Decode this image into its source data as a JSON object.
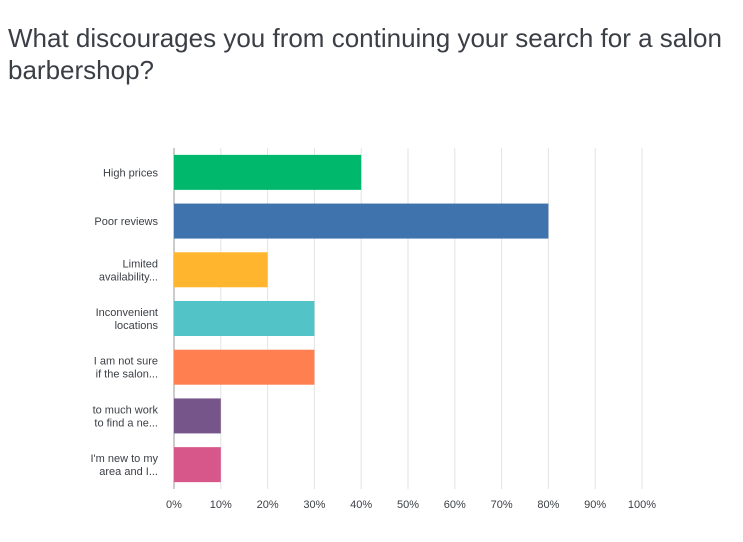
{
  "chart_data": {
    "type": "bar",
    "orientation": "horizontal",
    "title": "What discourages you from continuing your search for a salon barbershop?",
    "categories": [
      [
        "High prices"
      ],
      [
        "Poor reviews"
      ],
      [
        "Limited",
        "availability..."
      ],
      [
        "Inconvenient",
        "locations"
      ],
      [
        "I am not sure",
        "if the salon..."
      ],
      [
        "to much work",
        "to find a ne..."
      ],
      [
        "I'm new to my",
        "area and I..."
      ]
    ],
    "values": [
      40,
      80,
      20,
      30,
      30,
      10,
      10
    ],
    "colors": [
      "#00b86b",
      "#3f73ad",
      "#ffb52e",
      "#52c4c8",
      "#ff7f50",
      "#76568a",
      "#d8578a"
    ],
    "xlim": [
      0,
      100
    ],
    "xticks": [
      0,
      10,
      20,
      30,
      40,
      50,
      60,
      70,
      80,
      90,
      100
    ],
    "tick_suffix": "%",
    "grid": true,
    "xlabel": "",
    "ylabel": ""
  }
}
